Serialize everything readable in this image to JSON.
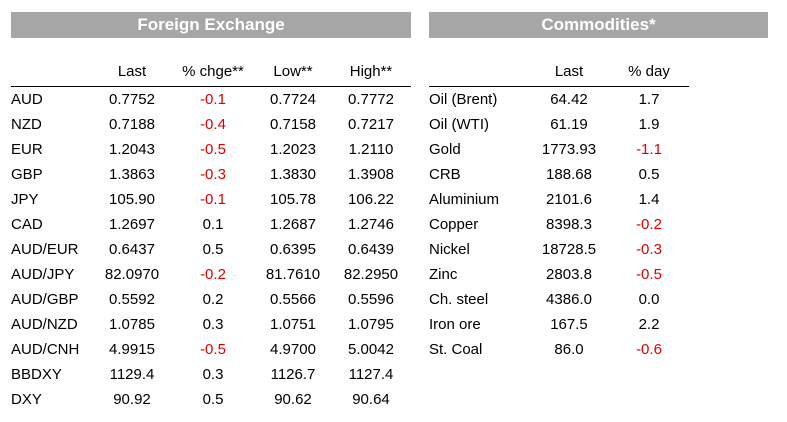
{
  "fx": {
    "title": "Foreign Exchange",
    "headers": [
      "",
      "Last",
      "% chge**",
      "Low**",
      "High**"
    ],
    "rows": [
      {
        "name": "AUD",
        "last": "0.7752",
        "chg": "-0.1",
        "low": "0.7724",
        "high": "0.7772"
      },
      {
        "name": "NZD",
        "last": "0.7188",
        "chg": "-0.4",
        "low": "0.7158",
        "high": "0.7217"
      },
      {
        "name": "EUR",
        "last": "1.2043",
        "chg": "-0.5",
        "low": "1.2023",
        "high": "1.2110"
      },
      {
        "name": "GBP",
        "last": "1.3863",
        "chg": "-0.3",
        "low": "1.3830",
        "high": "1.3908"
      },
      {
        "name": "JPY",
        "last": "105.90",
        "chg": "-0.1",
        "low": "105.78",
        "high": "106.22"
      },
      {
        "name": "CAD",
        "last": "1.2697",
        "chg": "0.1",
        "low": "1.2687",
        "high": "1.2746"
      },
      {
        "name": "AUD/EUR",
        "last": "0.6437",
        "chg": "0.5",
        "low": "0.6395",
        "high": "0.6439"
      },
      {
        "name": "AUD/JPY",
        "last": "82.0970",
        "chg": "-0.2",
        "low": "81.7610",
        "high": "82.2950"
      },
      {
        "name": "AUD/GBP",
        "last": "0.5592",
        "chg": "0.2",
        "low": "0.5566",
        "high": "0.5596"
      },
      {
        "name": "AUD/NZD",
        "last": "1.0785",
        "chg": "0.3",
        "low": "1.0751",
        "high": "1.0795"
      },
      {
        "name": "AUD/CNH",
        "last": "4.9915",
        "chg": "-0.5",
        "low": "4.9700",
        "high": "5.0042"
      },
      {
        "name": "BBDXY",
        "last": "1129.4",
        "chg": "0.3",
        "low": "1126.7",
        "high": "1127.4"
      },
      {
        "name": "DXY",
        "last": "90.92",
        "chg": "0.5",
        "low": "90.62",
        "high": "90.64"
      }
    ]
  },
  "commodities": {
    "title": "Commodities*",
    "headers": [
      "",
      "Last",
      "% day"
    ],
    "rows": [
      {
        "name": "Oil (Brent)",
        "last": "64.42",
        "day": "1.7"
      },
      {
        "name": "Oil (WTI)",
        "last": "61.19",
        "day": "1.9"
      },
      {
        "name": "Gold",
        "last": "1773.93",
        "day": "-1.1"
      },
      {
        "name": "CRB",
        "last": "188.68",
        "day": "0.5"
      },
      {
        "name": "Aluminium",
        "last": "2101.6",
        "day": "1.4"
      },
      {
        "name": "Copper",
        "last": "8398.3",
        "day": "-0.2"
      },
      {
        "name": "Nickel",
        "last": "18728.5",
        "day": "-0.3"
      },
      {
        "name": "Zinc",
        "last": "2803.8",
        "day": "-0.5"
      },
      {
        "name": "Ch. steel",
        "last": "4386.0",
        "day": "0.0"
      },
      {
        "name": "Iron ore",
        "last": "167.5",
        "day": "2.2"
      },
      {
        "name": "St. Coal",
        "last": "86.0",
        "day": "-0.6"
      }
    ]
  },
  "colors": {
    "header_band": "#a6a6a6",
    "header_text": "#ffffff",
    "negative": "#e00000",
    "text": "#000000"
  }
}
